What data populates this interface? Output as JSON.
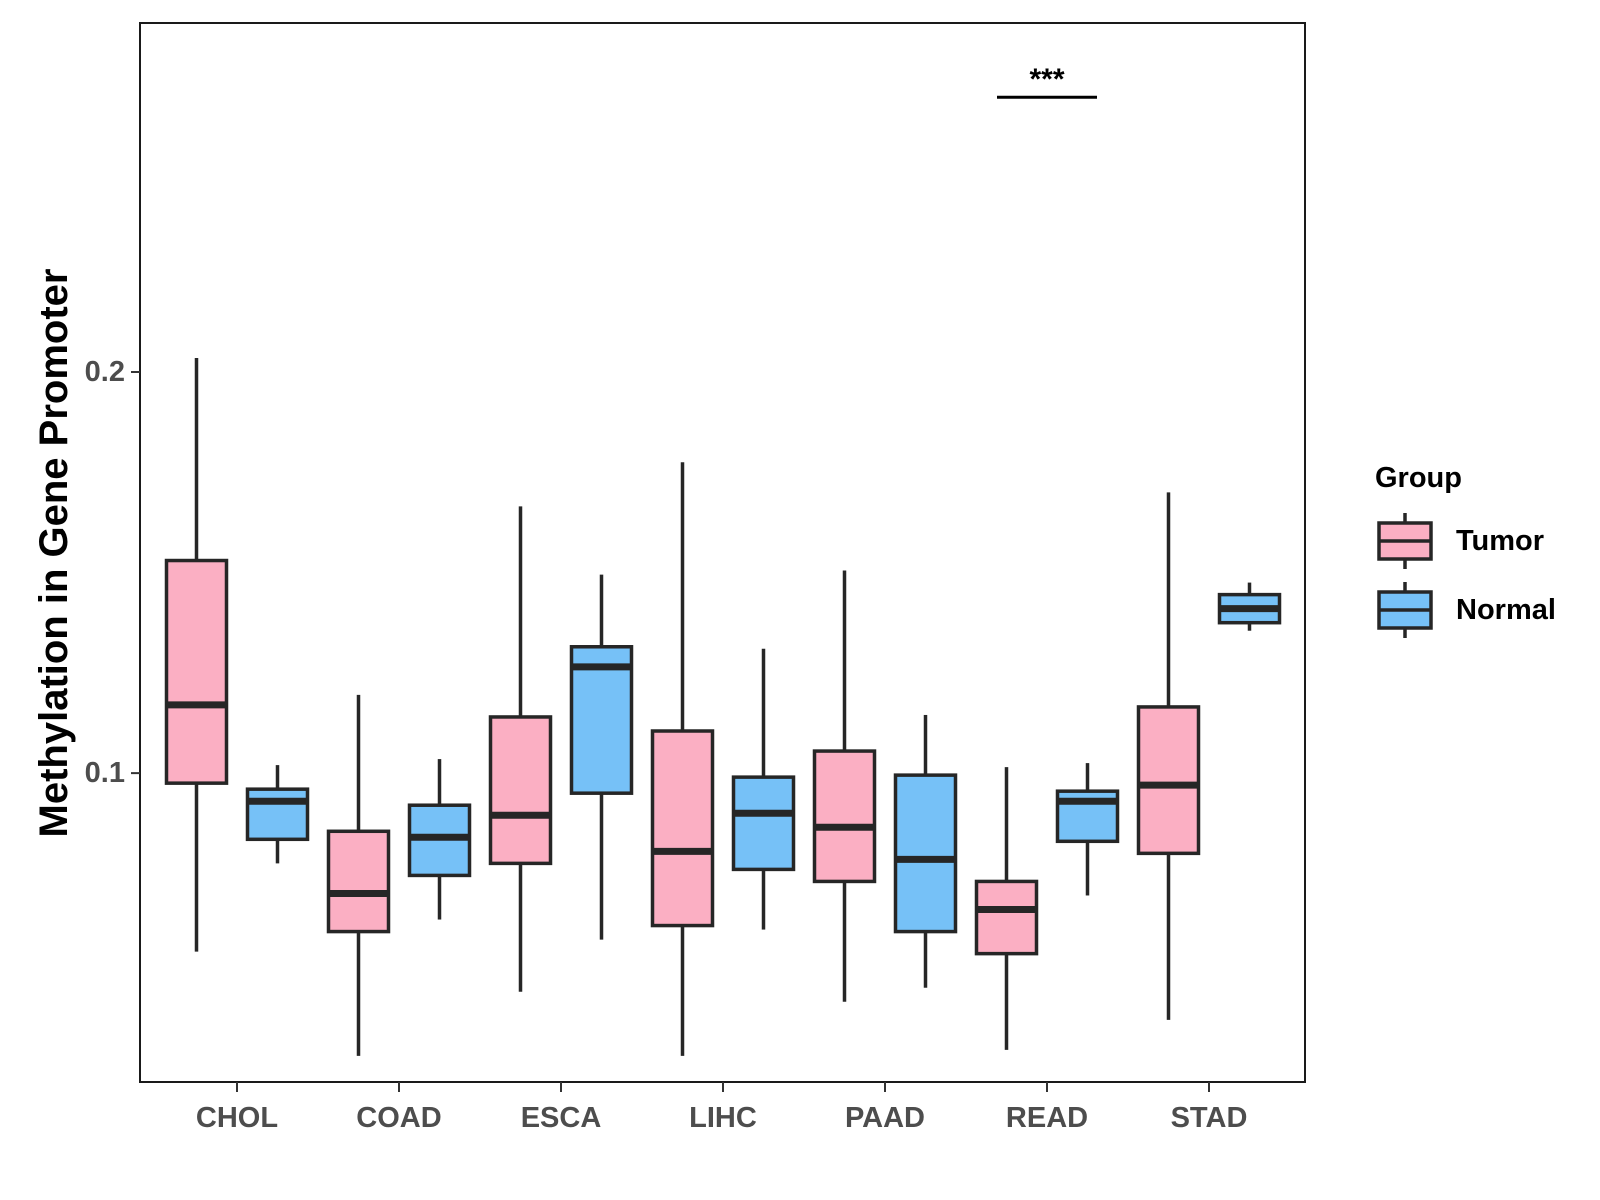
{
  "chart_data": {
    "type": "boxplot",
    "title": "",
    "xlabel": "",
    "ylabel": "Methylation in Gene Promoter",
    "ylim": [
      0.023,
      0.287
    ],
    "yticks": [
      0.1,
      0.2
    ],
    "ytick_labels": [
      "0.1",
      "0.2"
    ],
    "categories": [
      "CHOL",
      "COAD",
      "ESCA",
      "LIHC",
      "PAAD",
      "READ",
      "STAD"
    ],
    "legend": {
      "title": "Group",
      "position": "right",
      "entries": [
        {
          "name": "Tumor",
          "color": "#FBAFC3"
        },
        {
          "name": "Normal",
          "color": "#76C1F7"
        }
      ]
    },
    "series": [
      {
        "name": "Tumor",
        "color": "#FBAFC3",
        "boxes": [
          {
            "category": "CHOL",
            "min": 0.0555,
            "q1": 0.0975,
            "median": 0.117,
            "q3": 0.153,
            "max": 0.2035
          },
          {
            "category": "COAD",
            "min": 0.0295,
            "q1": 0.0605,
            "median": 0.07,
            "q3": 0.0855,
            "max": 0.1195
          },
          {
            "category": "ESCA",
            "min": 0.0455,
            "q1": 0.0775,
            "median": 0.0895,
            "q3": 0.114,
            "max": 0.1665
          },
          {
            "category": "LIHC",
            "min": 0.0295,
            "q1": 0.062,
            "median": 0.0805,
            "q3": 0.1105,
            "max": 0.1775
          },
          {
            "category": "PAAD",
            "min": 0.043,
            "q1": 0.073,
            "median": 0.0865,
            "q3": 0.1055,
            "max": 0.1505
          },
          {
            "category": "READ",
            "min": 0.031,
            "q1": 0.055,
            "median": 0.066,
            "q3": 0.073,
            "max": 0.1015
          },
          {
            "category": "STAD",
            "min": 0.0385,
            "q1": 0.08,
            "median": 0.097,
            "q3": 0.1165,
            "max": 0.17
          }
        ]
      },
      {
        "name": "Normal",
        "color": "#76C1F7",
        "boxes": [
          {
            "category": "CHOL",
            "min": 0.0775,
            "q1": 0.0835,
            "median": 0.093,
            "q3": 0.096,
            "max": 0.102
          },
          {
            "category": "COAD",
            "min": 0.0635,
            "q1": 0.0745,
            "median": 0.084,
            "q3": 0.092,
            "max": 0.1035
          },
          {
            "category": "ESCA",
            "min": 0.0585,
            "q1": 0.095,
            "median": 0.1265,
            "q3": 0.1315,
            "max": 0.1495
          },
          {
            "category": "LIHC",
            "min": 0.061,
            "q1": 0.076,
            "median": 0.09,
            "q3": 0.099,
            "max": 0.131
          },
          {
            "category": "PAAD",
            "min": 0.0465,
            "q1": 0.0605,
            "median": 0.0785,
            "q3": 0.0995,
            "max": 0.1145
          },
          {
            "category": "READ",
            "min": 0.0695,
            "q1": 0.083,
            "median": 0.093,
            "q3": 0.0955,
            "max": 0.1025
          },
          {
            "category": "STAD",
            "min": 0.1355,
            "q1": 0.1375,
            "median": 0.141,
            "q3": 0.1445,
            "max": 0.1475
          }
        ]
      }
    ],
    "annotations": [
      {
        "category": "READ",
        "label": "***",
        "y": 0.2685
      }
    ]
  }
}
